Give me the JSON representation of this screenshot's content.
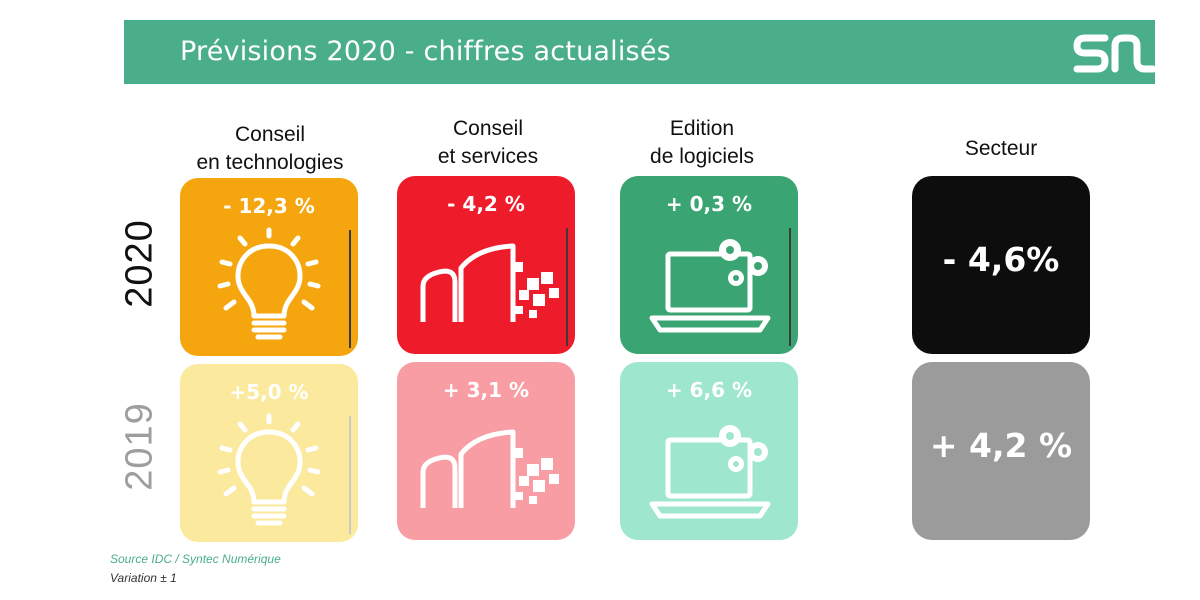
{
  "banner": {
    "title": "Prévisions 2020 - chiffres actualisés"
  },
  "columns": [
    "Conseil\nen technologies",
    "Conseil\net services",
    "Edition\nde logiciels",
    "Secteur"
  ],
  "years": {
    "y2020": "2020",
    "y2019": "2019"
  },
  "tiles_2020": [
    {
      "value": "- 12,3 %",
      "color": "#f5a60e",
      "icon": "lightbulb-icon"
    },
    {
      "value": "- 4,2 %",
      "color": "#ee1c2b",
      "icon": "buildings-icon"
    },
    {
      "value": "+ 0,3 %",
      "color": "#3aa573",
      "icon": "laptop-gears-icon"
    }
  ],
  "tiles_2019": [
    {
      "value": "+5,0 %",
      "color": "#fbe99d",
      "icon": "lightbulb-icon"
    },
    {
      "value": "+ 3,1 %",
      "color": "#f99da4",
      "icon": "buildings-icon"
    },
    {
      "value": "+ 6,6 %",
      "color": "#9ee6ce",
      "icon": "laptop-gears-icon"
    }
  ],
  "sector": {
    "y2020": {
      "value": "- 4,6%",
      "color": "#0d0d0d"
    },
    "y2019": {
      "value": "+ 4,2 %",
      "color": "#9b9b9b"
    }
  },
  "footer": {
    "source": "Source IDC / Syntec Numérique",
    "variation": "Variation ± 1"
  }
}
